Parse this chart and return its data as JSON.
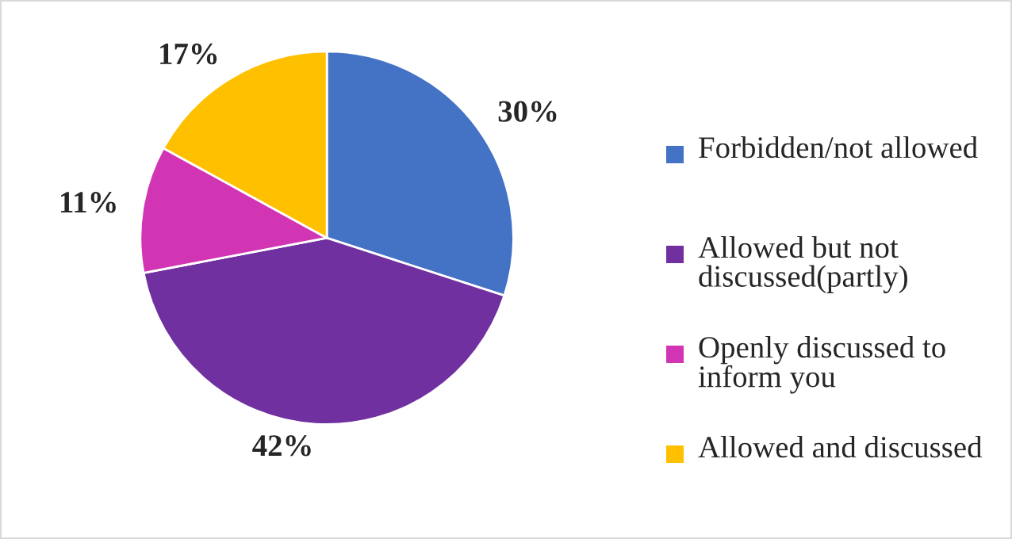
{
  "chart_data": {
    "type": "pie",
    "categories": [
      "Forbidden/not allowed",
      "Allowed but not discussed(partly)",
      "Openly discussed to inform you",
      "Allowed and discussed"
    ],
    "values": [
      30,
      42,
      11,
      17
    ],
    "value_labels": [
      "30%",
      "42%",
      "11%",
      "17%"
    ],
    "colors": [
      "#4472c4",
      "#7030a0",
      "#d235b4",
      "#ffc000"
    ],
    "legend": "right"
  }
}
